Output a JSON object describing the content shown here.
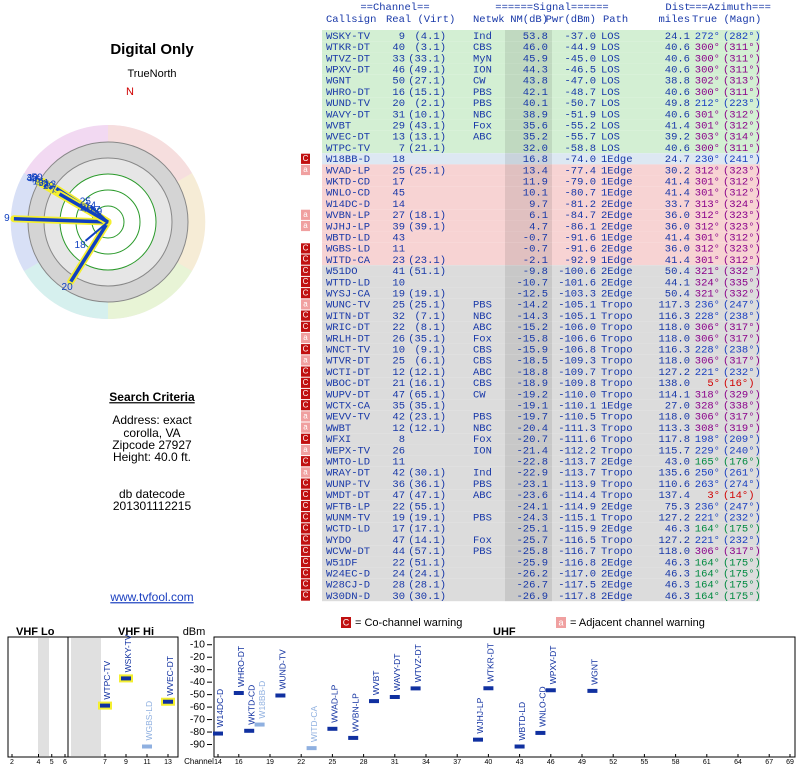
{
  "title": "Digital Only",
  "compass": {
    "label": "TrueNorth",
    "north": "N"
  },
  "search": {
    "heading": "Search Criteria",
    "lines": [
      "Address: exact",
      "corolla, VA",
      "Zipcode 27927",
      "Height: 40.0 ft."
    ],
    "datecode_label": "db datecode",
    "datecode": "201301112215"
  },
  "link": "www.tvfool.com",
  "table": {
    "group_headers": [
      "==Channel==",
      "======Signal======",
      "Dist",
      "===Azimuth==="
    ],
    "headers": [
      "Callsign",
      "Real (Virt)",
      "Netwk",
      "NM(dB)",
      "Pwr(dBm)",
      "Path",
      "miles",
      "True (Magn)"
    ],
    "rows": [
      [
        null,
        "WSKY-TV",
        "9",
        "(4.1)",
        "Ind",
        "53.8",
        "-37.0",
        "LOS",
        "24.1",
        "272°",
        "(282°)",
        "#d3efd3",
        "#1a3fc0"
      ],
      [
        null,
        "WTKR-DT",
        "40",
        "(3.1)",
        "CBS",
        "46.0",
        "-44.9",
        "LOS",
        "40.6",
        "300°",
        "(311°)",
        "#d3efd3",
        "#8a008a"
      ],
      [
        null,
        "WTVZ-DT",
        "33",
        "(33.1)",
        "MyN",
        "45.9",
        "-45.0",
        "LOS",
        "40.6",
        "300°",
        "(311°)",
        "#d3efd3",
        "#8a008a"
      ],
      [
        null,
        "WPXV-DT",
        "46",
        "(49.1)",
        "ION",
        "44.3",
        "-46.5",
        "LOS",
        "40.6",
        "300°",
        "(311°)",
        "#d3efd3",
        "#8a008a"
      ],
      [
        null,
        "WGNT",
        "50",
        "(27.1)",
        "CW",
        "43.8",
        "-47.0",
        "LOS",
        "38.8",
        "302°",
        "(313°)",
        "#d3efd3",
        "#8a008a"
      ],
      [
        null,
        "WHRO-DT",
        "16",
        "(15.1)",
        "PBS",
        "42.1",
        "-48.7",
        "LOS",
        "40.6",
        "300°",
        "(311°)",
        "#d3efd3",
        "#8a008a"
      ],
      [
        null,
        "WUND-TV",
        "20",
        "(2.1)",
        "PBS",
        "40.1",
        "-50.7",
        "LOS",
        "49.8",
        "212°",
        "(223°)",
        "#d3efd3",
        "#1a3fc0"
      ],
      [
        null,
        "WAVY-DT",
        "31",
        "(10.1)",
        "NBC",
        "38.9",
        "-51.9",
        "LOS",
        "40.6",
        "301°",
        "(312°)",
        "#d3efd3",
        "#8a008a"
      ],
      [
        null,
        "WVBT",
        "29",
        "(43.1)",
        "Fox",
        "35.6",
        "-55.2",
        "LOS",
        "41.4",
        "301°",
        "(312°)",
        "#d3efd3",
        "#8a008a"
      ],
      [
        null,
        "WVEC-DT",
        "13",
        "(13.1)",
        "ABC",
        "35.2",
        "-55.7",
        "LOS",
        "39.2",
        "303°",
        "(314°)",
        "#d3efd3",
        "#8a008a"
      ],
      [
        null,
        "WTPC-TV",
        "7",
        "(21.1)",
        null,
        "32.0",
        "-58.8",
        "LOS",
        "40.6",
        "300°",
        "(311°)",
        "#d3efd3",
        "#8a008a"
      ],
      [
        "C",
        "W18BB-D",
        "18",
        null,
        null,
        "16.8",
        "-74.0",
        "1Edge",
        "24.7",
        "230°",
        "(241°)",
        "#dde8f2",
        "#1a3fc0"
      ],
      [
        "a",
        "WVAD-LP",
        "25",
        "(25.1)",
        null,
        "13.4",
        "-77.4",
        "1Edge",
        "30.2",
        "312°",
        "(323°)",
        "#f7d3d3",
        "#8a008a"
      ],
      [
        null,
        "WKTD-CD",
        "17",
        null,
        null,
        "11.9",
        "-79.0",
        "1Edge",
        "41.4",
        "301°",
        "(312°)",
        "#f7d3d3",
        "#8a008a"
      ],
      [
        null,
        "WNLO-CD",
        "45",
        null,
        null,
        "10.1",
        "-80.7",
        "1Edge",
        "41.4",
        "301°",
        "(312°)",
        "#f7d3d3",
        "#8a008a"
      ],
      [
        null,
        "W14DC-D",
        "14",
        null,
        null,
        "9.7",
        "-81.2",
        "2Edge",
        "33.7",
        "313°",
        "(324°)",
        "#f7d3d3",
        "#8a008a"
      ],
      [
        "a",
        "WVBN-LP",
        "27",
        "(18.1)",
        null,
        "6.1",
        "-84.7",
        "2Edge",
        "36.0",
        "312°",
        "(323°)",
        "#f7d3d3",
        "#8a008a"
      ],
      [
        "a",
        "WJHJ-LP",
        "39",
        "(39.1)",
        null,
        "4.7",
        "-86.1",
        "2Edge",
        "36.0",
        "312°",
        "(323°)",
        "#f7d3d3",
        "#8a008a"
      ],
      [
        null,
        "WBTD-LD",
        "43",
        null,
        null,
        "-0.7",
        "-91.6",
        "1Edge",
        "41.4",
        "301°",
        "(312°)",
        "#f7d3d3",
        "#8a008a"
      ],
      [
        "C",
        "WGBS-LD",
        "11",
        null,
        null,
        "-0.7",
        "-91.6",
        "2Edge",
        "36.0",
        "312°",
        "(323°)",
        "#f7d3d3",
        "#8a008a"
      ],
      [
        "C",
        "WITD-CA",
        "23",
        "(23.1)",
        null,
        "-2.1",
        "-92.9",
        "1Edge",
        "41.4",
        "301°",
        "(312°)",
        "#f7d3d3",
        "#8a008a"
      ],
      [
        "C",
        "W51DO",
        "41",
        "(51.1)",
        null,
        "-9.8",
        "-100.6",
        "2Edge",
        "50.4",
        "321°",
        "(332°)",
        "#dcdcdc",
        "#8a008a"
      ],
      [
        "C",
        "WTTD-LD",
        "10",
        null,
        null,
        "-10.7",
        "-101.6",
        "2Edge",
        "44.1",
        "324°",
        "(335°)",
        "#dcdcdc",
        "#8a008a"
      ],
      [
        "C",
        "WYSJ-CA",
        "19",
        "(19.1)",
        null,
        "-12.5",
        "-103.3",
        "2Edge",
        "50.4",
        "321°",
        "(332°)",
        "#dcdcdc",
        "#8a008a"
      ],
      [
        "a",
        "WUNC-TV",
        "25",
        "(25.1)",
        "PBS",
        "-14.2",
        "-105.1",
        "Tropo",
        "117.3",
        "236°",
        "(247°)",
        "#dcdcdc",
        "#1a3fc0"
      ],
      [
        "C",
        "WITN-DT",
        "32",
        "(7.1)",
        "NBC",
        "-14.3",
        "-105.1",
        "Tropo",
        "116.3",
        "228°",
        "(238°)",
        "#dcdcdc",
        "#1a3fc0"
      ],
      [
        "C",
        "WRIC-DT",
        "22",
        "(8.1)",
        "ABC",
        "-15.2",
        "-106.0",
        "Tropo",
        "118.0",
        "306°",
        "(317°)",
        "#dcdcdc",
        "#8a008a"
      ],
      [
        "a",
        "WRLH-DT",
        "26",
        "(35.1)",
        "Fox",
        "-15.8",
        "-106.6",
        "Tropo",
        "118.0",
        "306°",
        "(317°)",
        "#dcdcdc",
        "#8a008a"
      ],
      [
        "C",
        "WNCT-TV",
        "10",
        "(9.1)",
        "CBS",
        "-15.9",
        "-106.8",
        "Tropo",
        "116.3",
        "228°",
        "(238°)",
        "#dcdcdc",
        "#1a3fc0"
      ],
      [
        "a",
        "WTVR-DT",
        "25",
        "(6.1)",
        "CBS",
        "-18.5",
        "-109.3",
        "Tropo",
        "118.0",
        "306°",
        "(317°)",
        "#dcdcdc",
        "#8a008a"
      ],
      [
        "C",
        "WCTI-DT",
        "12",
        "(12.1)",
        "ABC",
        "-18.8",
        "-109.7",
        "Tropo",
        "127.2",
        "221°",
        "(232°)",
        "#dcdcdc",
        "#1a3fc0"
      ],
      [
        "C",
        "WBOC-DT",
        "21",
        "(16.1)",
        "CBS",
        "-18.9",
        "-109.8",
        "Tropo",
        "138.0",
        "5°",
        "(16°)",
        "#dcdcdc",
        "#d00000"
      ],
      [
        "C",
        "WUPV-DT",
        "47",
        "(65.1)",
        "CW",
        "-19.2",
        "-110.0",
        "Tropo",
        "114.1",
        "318°",
        "(329°)",
        "#dcdcdc",
        "#8a008a"
      ],
      [
        "C",
        "WCTX-CA",
        "35",
        "(35.1)",
        null,
        "-19.1",
        "-110.1",
        "1Edge",
        "27.0",
        "328°",
        "(338°)",
        "#dcdcdc",
        "#8a008a"
      ],
      [
        "a",
        "WEVV-TV",
        "42",
        "(23.1)",
        "PBS",
        "-19.7",
        "-110.5",
        "Tropo",
        "118.0",
        "306°",
        "(317°)",
        "#dcdcdc",
        "#8a008a"
      ],
      [
        "a",
        "WWBT",
        "12",
        "(12.1)",
        "NBC",
        "-20.4",
        "-111.3",
        "Tropo",
        "113.3",
        "308°",
        "(319°)",
        "#dcdcdc",
        "#8a008a"
      ],
      [
        "C",
        "WFXI",
        "8",
        null,
        "Fox",
        "-20.7",
        "-111.6",
        "Tropo",
        "117.8",
        "198°",
        "(209°)",
        "#dcdcdc",
        "#1a3fc0"
      ],
      [
        "a",
        "WEPX-TV",
        "26",
        null,
        "ION",
        "-21.4",
        "-112.2",
        "Tropo",
        "115.7",
        "229°",
        "(240°)",
        "#dcdcdc",
        "#1a3fc0"
      ],
      [
        "C",
        "WMTO-LD",
        "11",
        null,
        null,
        "-22.8",
        "-113.7",
        "2Edge",
        "43.0",
        "165°",
        "(176°)",
        "#dcdcdc",
        "#008a40"
      ],
      [
        "a",
        "WRAY-DT",
        "42",
        "(30.1)",
        "Ind",
        "-22.9",
        "-113.7",
        "Tropo",
        "135.6",
        "250°",
        "(261°)",
        "#dcdcdc",
        "#1a3fc0"
      ],
      [
        "C",
        "WUNP-TV",
        "36",
        "(36.1)",
        "PBS",
        "-23.1",
        "-113.9",
        "Tropo",
        "110.6",
        "263°",
        "(274°)",
        "#dcdcdc",
        "#1a3fc0"
      ],
      [
        "C",
        "WMDT-DT",
        "47",
        "(47.1)",
        "ABC",
        "-23.6",
        "-114.4",
        "Tropo",
        "137.4",
        "3°",
        "(14°)",
        "#dcdcdc",
        "#d00000"
      ],
      [
        "C",
        "WFTB-LP",
        "22",
        "(55.1)",
        null,
        "-24.1",
        "-114.9",
        "2Edge",
        "75.3",
        "236°",
        "(247°)",
        "#dcdcdc",
        "#1a3fc0"
      ],
      [
        "C",
        "WUNM-TV",
        "19",
        "(19.1)",
        "PBS",
        "-24.3",
        "-115.1",
        "Tropo",
        "127.2",
        "221°",
        "(232°)",
        "#dcdcdc",
        "#1a3fc0"
      ],
      [
        "C",
        "WCTD-LD",
        "17",
        "(17.1)",
        null,
        "-25.1",
        "-115.9",
        "2Edge",
        "46.3",
        "164°",
        "(175°)",
        "#dcdcdc",
        "#008a40"
      ],
      [
        "C",
        "WYDO",
        "47",
        "(14.1)",
        "Fox",
        "-25.7",
        "-116.5",
        "Tropo",
        "127.2",
        "221°",
        "(232°)",
        "#dcdcdc",
        "#1a3fc0"
      ],
      [
        "C",
        "WCVW-DT",
        "44",
        "(57.1)",
        "PBS",
        "-25.8",
        "-116.7",
        "Tropo",
        "118.0",
        "306°",
        "(317°)",
        "#dcdcdc",
        "#8a008a"
      ],
      [
        "C",
        "W51DF",
        "22",
        "(51.1)",
        null,
        "-25.9",
        "-116.8",
        "2Edge",
        "46.3",
        "164°",
        "(175°)",
        "#dcdcdc",
        "#008a40"
      ],
      [
        "C",
        "W24EC-D",
        "24",
        "(24.1)",
        null,
        "-26.2",
        "-117.0",
        "2Edge",
        "46.3",
        "164°",
        "(175°)",
        "#dcdcdc",
        "#008a40"
      ],
      [
        "C",
        "W28CJ-D",
        "28",
        "(28.1)",
        null,
        "-26.7",
        "-117.5",
        "2Edge",
        "46.3",
        "164°",
        "(175°)",
        "#dcdcdc",
        "#008a40"
      ],
      [
        "C",
        "W30DN-D",
        "30",
        "(30.1)",
        null,
        "-26.9",
        "-117.8",
        "2Edge",
        "46.3",
        "164°",
        "(175°)",
        "#dcdcdc",
        "#008a40"
      ]
    ]
  },
  "legend": {
    "co_flag": "C",
    "co_text": "= Co-channel warning",
    "adj_flag": "a",
    "adj_text": "= Adjacent channel warning"
  },
  "spectrum": {
    "panels": [
      "VHF Lo",
      "VHF Hi",
      "UHF"
    ],
    "unit": "dBm",
    "axis_label": "Channel",
    "ylim": [
      -3,
      -96
    ],
    "yticks": [
      -10,
      -20,
      -30,
      -40,
      -50,
      -60,
      -70,
      -80,
      -90
    ],
    "vhf_lo_ticks": [
      2,
      4,
      5,
      6
    ],
    "vhf_hi_ticks": [
      7,
      9,
      11,
      13
    ],
    "uhf_ticks": [
      14,
      16,
      19,
      22,
      25,
      28,
      31,
      34,
      37,
      40,
      43,
      46,
      49,
      52,
      55,
      58,
      61,
      64,
      67,
      69
    ]
  }
}
